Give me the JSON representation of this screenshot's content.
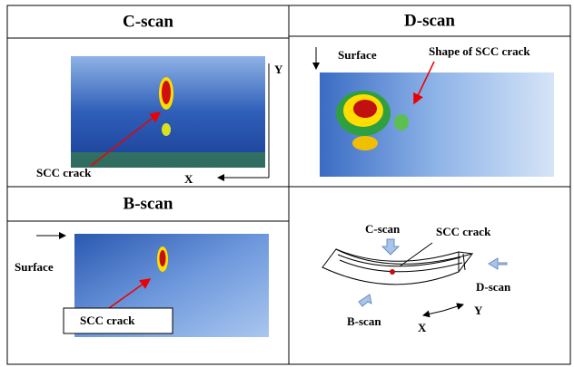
{
  "c_scan": {
    "title": "C-scan",
    "crack_label": "SCC crack",
    "x_axis": "X",
    "y_axis": "Y"
  },
  "d_scan": {
    "title": "D-scan",
    "surface_label": "Surface",
    "crack_label": "Shape of SCC crack"
  },
  "b_scan": {
    "title": "B-scan",
    "surface_label": "Surface",
    "crack_label": "SCC crack"
  },
  "schematic": {
    "c_scan": "C-scan",
    "crack": "SCC crack",
    "d_scan": "D-scan",
    "b_scan": "B-scan",
    "x_axis": "X",
    "y_axis": "Y"
  }
}
